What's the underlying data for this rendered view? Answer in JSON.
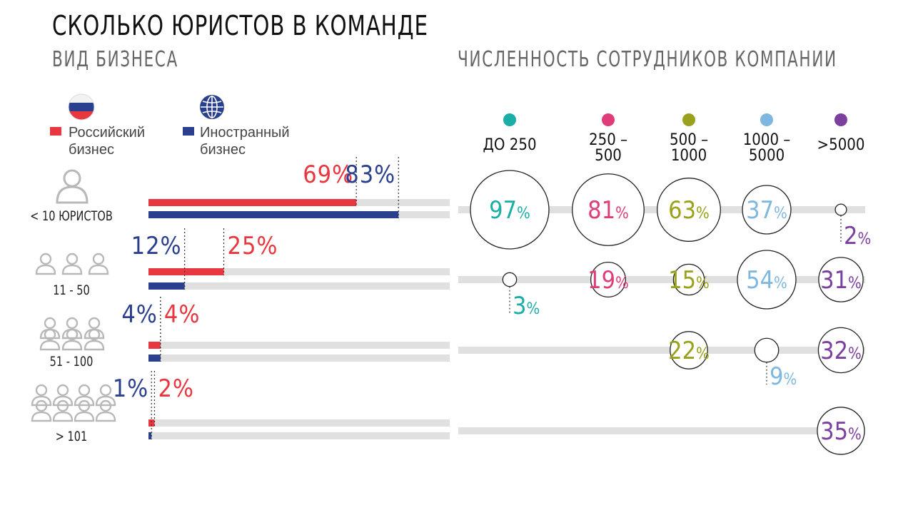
{
  "header": {
    "title": "СКОЛЬКО ЮРИСТОВ В КОМАНДЕ",
    "left_subtitle": "ВИД БИЗНЕСА",
    "right_subtitle": "ЧИСЛЕННОСТЬ СОТРУДНИКОВ КОМПАНИИ"
  },
  "legend": [
    {
      "label_line1": "Российский",
      "label_line2": "бизнес",
      "color": "#e8373f",
      "icon": "russia-flag-icon"
    },
    {
      "label_line1": "Иностранный",
      "label_line2": "бизнес",
      "color": "#2b3f8f",
      "icon": "globe-icon"
    }
  ],
  "rows": [
    "< 10 ЮРИСТОВ",
    "11 - 50",
    "51 - 100",
    "> 101"
  ],
  "colors": {
    "russian": "#e8373f",
    "foreign": "#2b3f8f",
    "track": "#e0e0e0",
    "c250": "#1aaea6",
    "c500": "#de3d7a",
    "c1000": "#9aa21c",
    "c5000": "#7eb8e0",
    "c5000plus": "#7b3fa0"
  },
  "chart_data": [
    {
      "type": "bar",
      "orientation": "horizontal",
      "title": "ВИД БИЗНЕСА",
      "categories": [
        "< 10 ЮРИСТОВ",
        "11 - 50",
        "51 - 100",
        "> 101"
      ],
      "series": [
        {
          "name": "Российский бизнес",
          "values": [
            69,
            25,
            4,
            2
          ],
          "labels": [
            "69%",
            "25%",
            "4%",
            "2%"
          ]
        },
        {
          "name": "Иностранный бизнес",
          "values": [
            83,
            12,
            4,
            1
          ],
          "labels": [
            "83%",
            "12%",
            "4%",
            "1%"
          ]
        }
      ],
      "xlim": [
        0,
        100
      ]
    },
    {
      "type": "bubble",
      "title": "ЧИСЛЕННОСТЬ СОТРУДНИКОВ КОМПАНИИ",
      "columns": [
        "ДО 250",
        "250 –\n500",
        "500 –\n1000",
        "1000 –\n5000",
        ">5000"
      ],
      "rows": [
        "< 10 ЮРИСТОВ",
        "11 - 50",
        "51 - 100",
        "> 101"
      ],
      "values": [
        [
          97,
          81,
          63,
          37,
          2
        ],
        [
          3,
          19,
          15,
          54,
          31
        ],
        [
          null,
          null,
          22,
          9,
          32
        ],
        [
          null,
          null,
          null,
          null,
          35
        ]
      ]
    }
  ]
}
